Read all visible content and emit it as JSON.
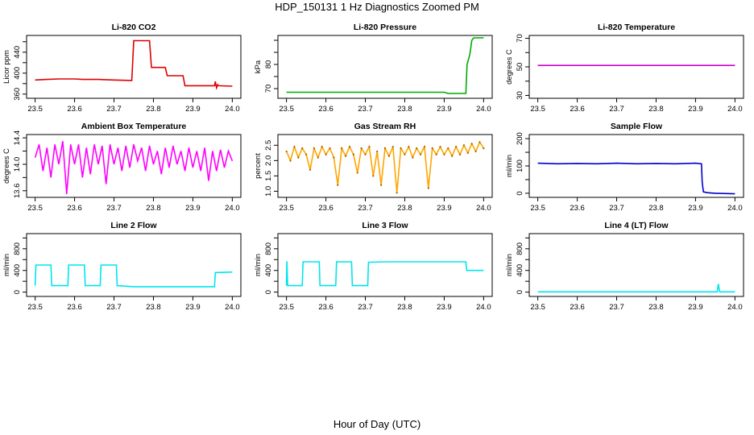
{
  "title": "HDP_150131  1 Hz Diagnostics Zoomed PM",
  "xlabel": "Hour of Day (UTC)",
  "chart_data": [
    {
      "type": "line",
      "title": "Li-820 CO2",
      "ylabel": "Licor ppm",
      "color": "#dd0000",
      "xlim": [
        23.5,
        24.0
      ],
      "xticks": [
        23.5,
        23.6,
        23.7,
        23.8,
        23.9,
        24.0
      ],
      "xtick_labels": [
        "23.5",
        "23.6",
        "23.7",
        "23.8",
        "23.9",
        "24.0"
      ],
      "ylim": [
        352,
        472
      ],
      "yticks": [
        360,
        400,
        440
      ],
      "ytick_labels": [
        "360",
        "400",
        "440"
      ],
      "minor_yticks": [
        380,
        420,
        460
      ],
      "series": [
        {
          "name": "CO2",
          "x": [
            23.5,
            23.53,
            23.56,
            23.6,
            23.62,
            23.66,
            23.7,
            23.745,
            23.75,
            23.79,
            23.795,
            23.83,
            23.835,
            23.875,
            23.88,
            23.955,
            23.957,
            23.96,
            23.963,
            23.965,
            24.0
          ],
          "y": [
            387,
            388,
            389,
            389,
            388,
            388,
            387,
            386,
            462,
            462,
            411,
            411,
            395,
            395,
            376,
            376,
            384,
            372,
            378,
            376,
            375
          ]
        }
      ]
    },
    {
      "type": "line",
      "title": "Li-820 Pressure",
      "ylabel": "kPa",
      "color": "#00aa00",
      "xlim": [
        23.5,
        24.0
      ],
      "xticks": [
        23.5,
        23.6,
        23.7,
        23.8,
        23.9,
        24.0
      ],
      "xtick_labels": [
        "23.5",
        "23.6",
        "23.7",
        "23.8",
        "23.9",
        "24.0"
      ],
      "ylim": [
        66,
        92
      ],
      "yticks": [
        70,
        80
      ],
      "ytick_labels": [
        "70",
        "80"
      ],
      "minor_yticks": [
        75,
        85,
        90
      ],
      "series": [
        {
          "name": "Pressure",
          "x": [
            23.5,
            23.7,
            23.9,
            23.91,
            23.955,
            23.958,
            23.965,
            23.97,
            23.975,
            24.0
          ],
          "y": [
            68.5,
            68.5,
            68.5,
            68.0,
            68.0,
            80.0,
            84.0,
            90.0,
            91.0,
            91.0
          ]
        }
      ]
    },
    {
      "type": "line",
      "title": "Li-820 Temperature",
      "ylabel": "degrees C",
      "color": "#cc00cc",
      "xlim": [
        23.5,
        24.0
      ],
      "xticks": [
        23.5,
        23.6,
        23.7,
        23.8,
        23.9,
        24.0
      ],
      "xtick_labels": [
        "23.5",
        "23.6",
        "23.7",
        "23.8",
        "23.9",
        "24.0"
      ],
      "ylim": [
        28,
        72
      ],
      "yticks": [
        30,
        50,
        70
      ],
      "ytick_labels": [
        "30",
        "50",
        "70"
      ],
      "minor_yticks": [
        40,
        60
      ],
      "series": [
        {
          "name": "Temperature",
          "x": [
            23.5,
            24.0
          ],
          "y": [
            51.0,
            51.0
          ]
        }
      ]
    },
    {
      "type": "line",
      "title": "Ambient Box Temperature",
      "ylabel": "degrees C",
      "color": "#ff00ff",
      "xlim": [
        23.5,
        24.0
      ],
      "xticks": [
        23.5,
        23.6,
        23.7,
        23.8,
        23.9,
        24.0
      ],
      "xtick_labels": [
        "23.5",
        "23.6",
        "23.7",
        "23.8",
        "23.9",
        "24.0"
      ],
      "ylim": [
        13.5,
        14.45
      ],
      "yticks": [
        13.6,
        14.0,
        14.4
      ],
      "ytick_labels": [
        "13.6",
        "14.0",
        "14.4"
      ],
      "minor_yticks": [
        13.8,
        14.2
      ],
      "series": [
        {
          "name": "Box temperature",
          "x": [
            23.5,
            23.51,
            23.52,
            23.53,
            23.54,
            23.55,
            23.56,
            23.57,
            23.58,
            23.59,
            23.6,
            23.61,
            23.62,
            23.63,
            23.64,
            23.65,
            23.66,
            23.67,
            23.68,
            23.69,
            23.7,
            23.71,
            23.72,
            23.73,
            23.74,
            23.75,
            23.76,
            23.77,
            23.78,
            23.79,
            23.8,
            23.81,
            23.82,
            23.83,
            23.84,
            23.85,
            23.86,
            23.87,
            23.88,
            23.89,
            23.9,
            23.91,
            23.92,
            23.93,
            23.94,
            23.95,
            23.96,
            23.97,
            23.98,
            23.99,
            24.0
          ],
          "y": [
            14.1,
            14.3,
            13.9,
            14.25,
            13.8,
            14.3,
            14.0,
            14.35,
            13.55,
            14.3,
            14.0,
            14.3,
            13.8,
            14.25,
            13.85,
            14.3,
            14.0,
            14.28,
            13.7,
            14.3,
            14.0,
            14.25,
            13.9,
            14.28,
            13.95,
            14.3,
            14.05,
            14.25,
            13.9,
            14.28,
            14.0,
            14.2,
            13.85,
            14.25,
            13.95,
            14.28,
            14.0,
            14.2,
            13.9,
            14.25,
            13.95,
            14.2,
            13.9,
            14.25,
            13.75,
            14.2,
            13.9,
            14.22,
            13.95,
            14.2,
            14.05
          ]
        }
      ]
    },
    {
      "type": "line",
      "title": "Gas Stream RH",
      "ylabel": "percent",
      "color": "#ffa500",
      "marker_color": "#996600",
      "xlim": [
        23.5,
        24.0
      ],
      "xticks": [
        23.5,
        23.6,
        23.7,
        23.8,
        23.9,
        24.0
      ],
      "xtick_labels": [
        "23.5",
        "23.6",
        "23.7",
        "23.8",
        "23.9",
        "24.0"
      ],
      "ylim": [
        0.8,
        2.85
      ],
      "yticks": [
        1.0,
        1.5,
        2.0,
        2.5
      ],
      "ytick_labels": [
        "1.0",
        "1.5",
        "2.0",
        "2.5"
      ],
      "minor_yticks": [],
      "series": [
        {
          "name": "RH",
          "x": [
            23.5,
            23.51,
            23.52,
            23.53,
            23.54,
            23.55,
            23.56,
            23.57,
            23.58,
            23.59,
            23.6,
            23.61,
            23.62,
            23.63,
            23.64,
            23.65,
            23.66,
            23.67,
            23.68,
            23.69,
            23.7,
            23.71,
            23.72,
            23.73,
            23.74,
            23.75,
            23.76,
            23.77,
            23.78,
            23.79,
            23.8,
            23.81,
            23.82,
            23.83,
            23.84,
            23.85,
            23.86,
            23.87,
            23.88,
            23.89,
            23.9,
            23.91,
            23.92,
            23.93,
            23.94,
            23.95,
            23.96,
            23.97,
            23.98,
            23.99,
            24.0
          ],
          "y": [
            2.3,
            2.0,
            2.45,
            2.1,
            2.4,
            2.2,
            1.7,
            2.4,
            2.1,
            2.45,
            2.2,
            2.4,
            2.1,
            1.2,
            2.4,
            2.15,
            2.45,
            2.2,
            1.6,
            2.4,
            2.2,
            2.45,
            1.5,
            2.3,
            1.2,
            2.4,
            2.15,
            2.45,
            0.95,
            2.4,
            2.2,
            2.45,
            2.1,
            2.4,
            2.2,
            2.45,
            1.1,
            2.4,
            2.2,
            2.45,
            2.2,
            2.4,
            2.15,
            2.45,
            2.2,
            2.5,
            2.25,
            2.55,
            2.3,
            2.6,
            2.4
          ]
        }
      ]
    },
    {
      "type": "line",
      "title": "Sample Flow",
      "ylabel": "ml/min",
      "color": "#0000cc",
      "xlim": [
        23.5,
        24.0
      ],
      "xticks": [
        23.5,
        23.6,
        23.7,
        23.8,
        23.9,
        24.0
      ],
      "xtick_labels": [
        "23.5",
        "23.6",
        "23.7",
        "23.8",
        "23.9",
        "24.0"
      ],
      "ylim": [
        -15,
        215
      ],
      "yticks": [
        0,
        100,
        200
      ],
      "ytick_labels": [
        "0",
        "100",
        "200"
      ],
      "minor_yticks": [
        50,
        150
      ],
      "series": [
        {
          "name": "Sample flow",
          "x": [
            23.5,
            23.55,
            23.6,
            23.65,
            23.7,
            23.75,
            23.8,
            23.85,
            23.9,
            23.915,
            23.917,
            23.92,
            23.93,
            23.95,
            24.0
          ],
          "y": [
            110,
            108,
            109,
            108,
            110,
            108,
            109,
            108,
            110,
            108,
            40,
            5,
            2,
            0,
            -2
          ]
        }
      ]
    },
    {
      "type": "line",
      "title": "Line 2 Flow",
      "ylabel": "ml/min",
      "color": "#00e5ee",
      "xlim": [
        23.5,
        24.0
      ],
      "xticks": [
        23.5,
        23.6,
        23.7,
        23.8,
        23.9,
        24.0
      ],
      "xtick_labels": [
        "23.5",
        "23.6",
        "23.7",
        "23.8",
        "23.9",
        "24.0"
      ],
      "ylim": [
        -80,
        1080
      ],
      "yticks": [
        0,
        400,
        800
      ],
      "ytick_labels": [
        "0",
        "400",
        "800"
      ],
      "minor_yticks": [
        200,
        600,
        1000
      ],
      "series": [
        {
          "name": "Line 2",
          "x": [
            23.5,
            23.502,
            23.54,
            23.542,
            23.583,
            23.585,
            23.625,
            23.627,
            23.665,
            23.667,
            23.706,
            23.708,
            23.75,
            23.8,
            23.85,
            23.9,
            23.955,
            23.957,
            24.0
          ],
          "y": [
            120,
            500,
            500,
            120,
            120,
            500,
            500,
            120,
            120,
            500,
            500,
            120,
            100,
            100,
            100,
            100,
            100,
            360,
            370
          ]
        }
      ]
    },
    {
      "type": "line",
      "title": "Line 3 Flow",
      "ylabel": "ml/min",
      "color": "#00e5ee",
      "xlim": [
        23.5,
        24.0
      ],
      "xticks": [
        23.5,
        23.6,
        23.7,
        23.8,
        23.9,
        24.0
      ],
      "xtick_labels": [
        "23.5",
        "23.6",
        "23.7",
        "23.8",
        "23.9",
        "24.0"
      ],
      "ylim": [
        -80,
        1080
      ],
      "yticks": [
        0,
        400,
        800
      ],
      "ytick_labels": [
        "0",
        "400",
        "800"
      ],
      "minor_yticks": [
        200,
        600,
        1000
      ],
      "series": [
        {
          "name": "Line 3",
          "x": [
            23.5,
            23.501,
            23.503,
            23.54,
            23.542,
            23.583,
            23.585,
            23.625,
            23.627,
            23.665,
            23.667,
            23.706,
            23.708,
            23.75,
            23.8,
            23.85,
            23.9,
            23.955,
            23.957,
            24.0
          ],
          "y": [
            120,
            570,
            120,
            120,
            560,
            560,
            120,
            120,
            560,
            560,
            120,
            120,
            550,
            560,
            560,
            560,
            560,
            560,
            400,
            400
          ]
        }
      ]
    },
    {
      "type": "line",
      "title": "Line 4 (LT) Flow",
      "ylabel": "ml/min",
      "color": "#00e5ee",
      "xlim": [
        23.5,
        24.0
      ],
      "xticks": [
        23.5,
        23.6,
        23.7,
        23.8,
        23.9,
        24.0
      ],
      "xtick_labels": [
        "23.5",
        "23.6",
        "23.7",
        "23.8",
        "23.9",
        "24.0"
      ],
      "ylim": [
        -80,
        1080
      ],
      "yticks": [
        0,
        400,
        800
      ],
      "ytick_labels": [
        "0",
        "400",
        "800"
      ],
      "minor_yticks": [
        200,
        600,
        1000
      ],
      "series": [
        {
          "name": "Line 4",
          "x": [
            23.5,
            23.6,
            23.7,
            23.8,
            23.9,
            23.955,
            23.958,
            23.961,
            23.964,
            24.0
          ],
          "y": [
            5,
            5,
            5,
            5,
            5,
            5,
            150,
            5,
            5,
            5
          ]
        }
      ]
    }
  ]
}
